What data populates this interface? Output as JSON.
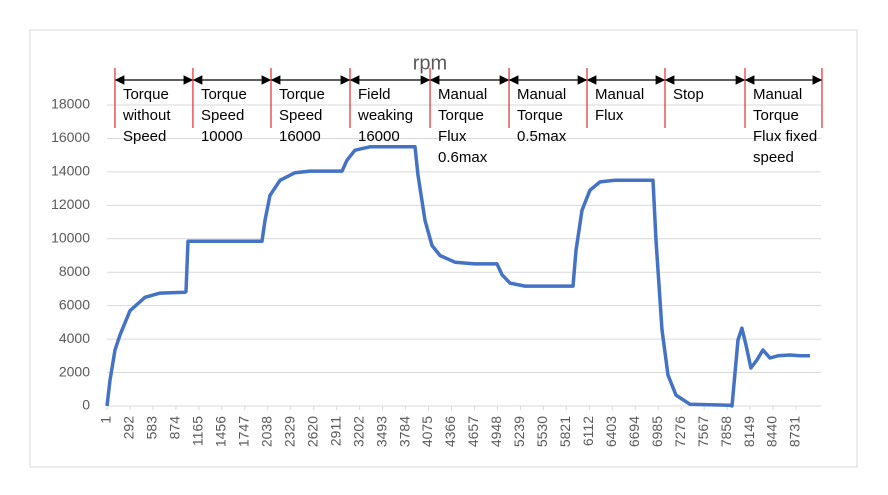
{
  "chart_data": {
    "type": "line",
    "title": "rpm",
    "x": [
      1,
      39,
      102,
      166,
      292,
      482,
      673,
      989,
      1002,
      1027,
      1965,
      2003,
      2066,
      2193,
      2383,
      2573,
      2978,
      3042,
      3143,
      3333,
      3903,
      3941,
      4030,
      4119,
      4220,
      4410,
      4663,
      4942,
      5006,
      5107,
      5297,
      5905,
      5943,
      6019,
      6120,
      6247,
      6437,
      6919,
      6957,
      7033,
      7109,
      7210,
      7388,
      7894,
      7920,
      7996,
      8046,
      8097,
      8160,
      8236,
      8312,
      8401,
      8502,
      8654,
      8781,
      8908
    ],
    "series": [
      {
        "name": "rpm",
        "color": "#4472c4",
        "values": [
          0,
          1550,
          3350,
          4250,
          5700,
          6500,
          6750,
          6800,
          6850,
          9850,
          9850,
          11100,
          12600,
          13500,
          13950,
          14050,
          14050,
          14700,
          15300,
          15500,
          15500,
          13800,
          11100,
          9600,
          9000,
          8600,
          8500,
          8500,
          7850,
          7350,
          7170,
          7170,
          9300,
          11700,
          12900,
          13400,
          13500,
          13500,
          9900,
          4550,
          1850,
          650,
          100,
          50,
          0,
          3950,
          4650,
          3650,
          2270,
          2750,
          3350,
          2870,
          3000,
          3050,
          3000,
          3000
        ]
      }
    ],
    "xlim": [
      1,
      9050
    ],
    "xticks": [
      1,
      292,
      583,
      874,
      1165,
      1456,
      1747,
      2038,
      2329,
      2620,
      2911,
      3202,
      3493,
      3784,
      4075,
      4366,
      4657,
      4948,
      5239,
      5530,
      5821,
      6112,
      6403,
      6694,
      6985,
      7276,
      7567,
      7858,
      8149,
      8440,
      8731
    ],
    "ylim": [
      0,
      18000
    ],
    "yticks": [
      0,
      2000,
      4000,
      6000,
      8000,
      10000,
      12000,
      14000,
      16000,
      18000
    ],
    "grid": true,
    "phases": [
      {
        "label": "Torque\nwithout\nSpeed",
        "start": 102,
        "end": 1090
      },
      {
        "label": "Torque\nSpeed\n10000",
        "start": 1090,
        "end": 2079
      },
      {
        "label": "Torque\nSpeed\n16000",
        "start": 2079,
        "end": 3080
      },
      {
        "label": "Field\nweaking\n16000",
        "start": 3080,
        "end": 4094
      },
      {
        "label": "Manual\nTorque\nFlux\n0.6max",
        "start": 4094,
        "end": 5095
      },
      {
        "label": "Manual\nTorque\n0.5max",
        "start": 5095,
        "end": 6083
      },
      {
        "label": "Manual\nFlux",
        "start": 6083,
        "end": 7071
      },
      {
        "label": "Stop",
        "start": 7071,
        "end": 8085
      },
      {
        "label": "Manual\nTorque\nFlux fixed\nspeed",
        "start": 8085,
        "end": 9060
      }
    ]
  }
}
